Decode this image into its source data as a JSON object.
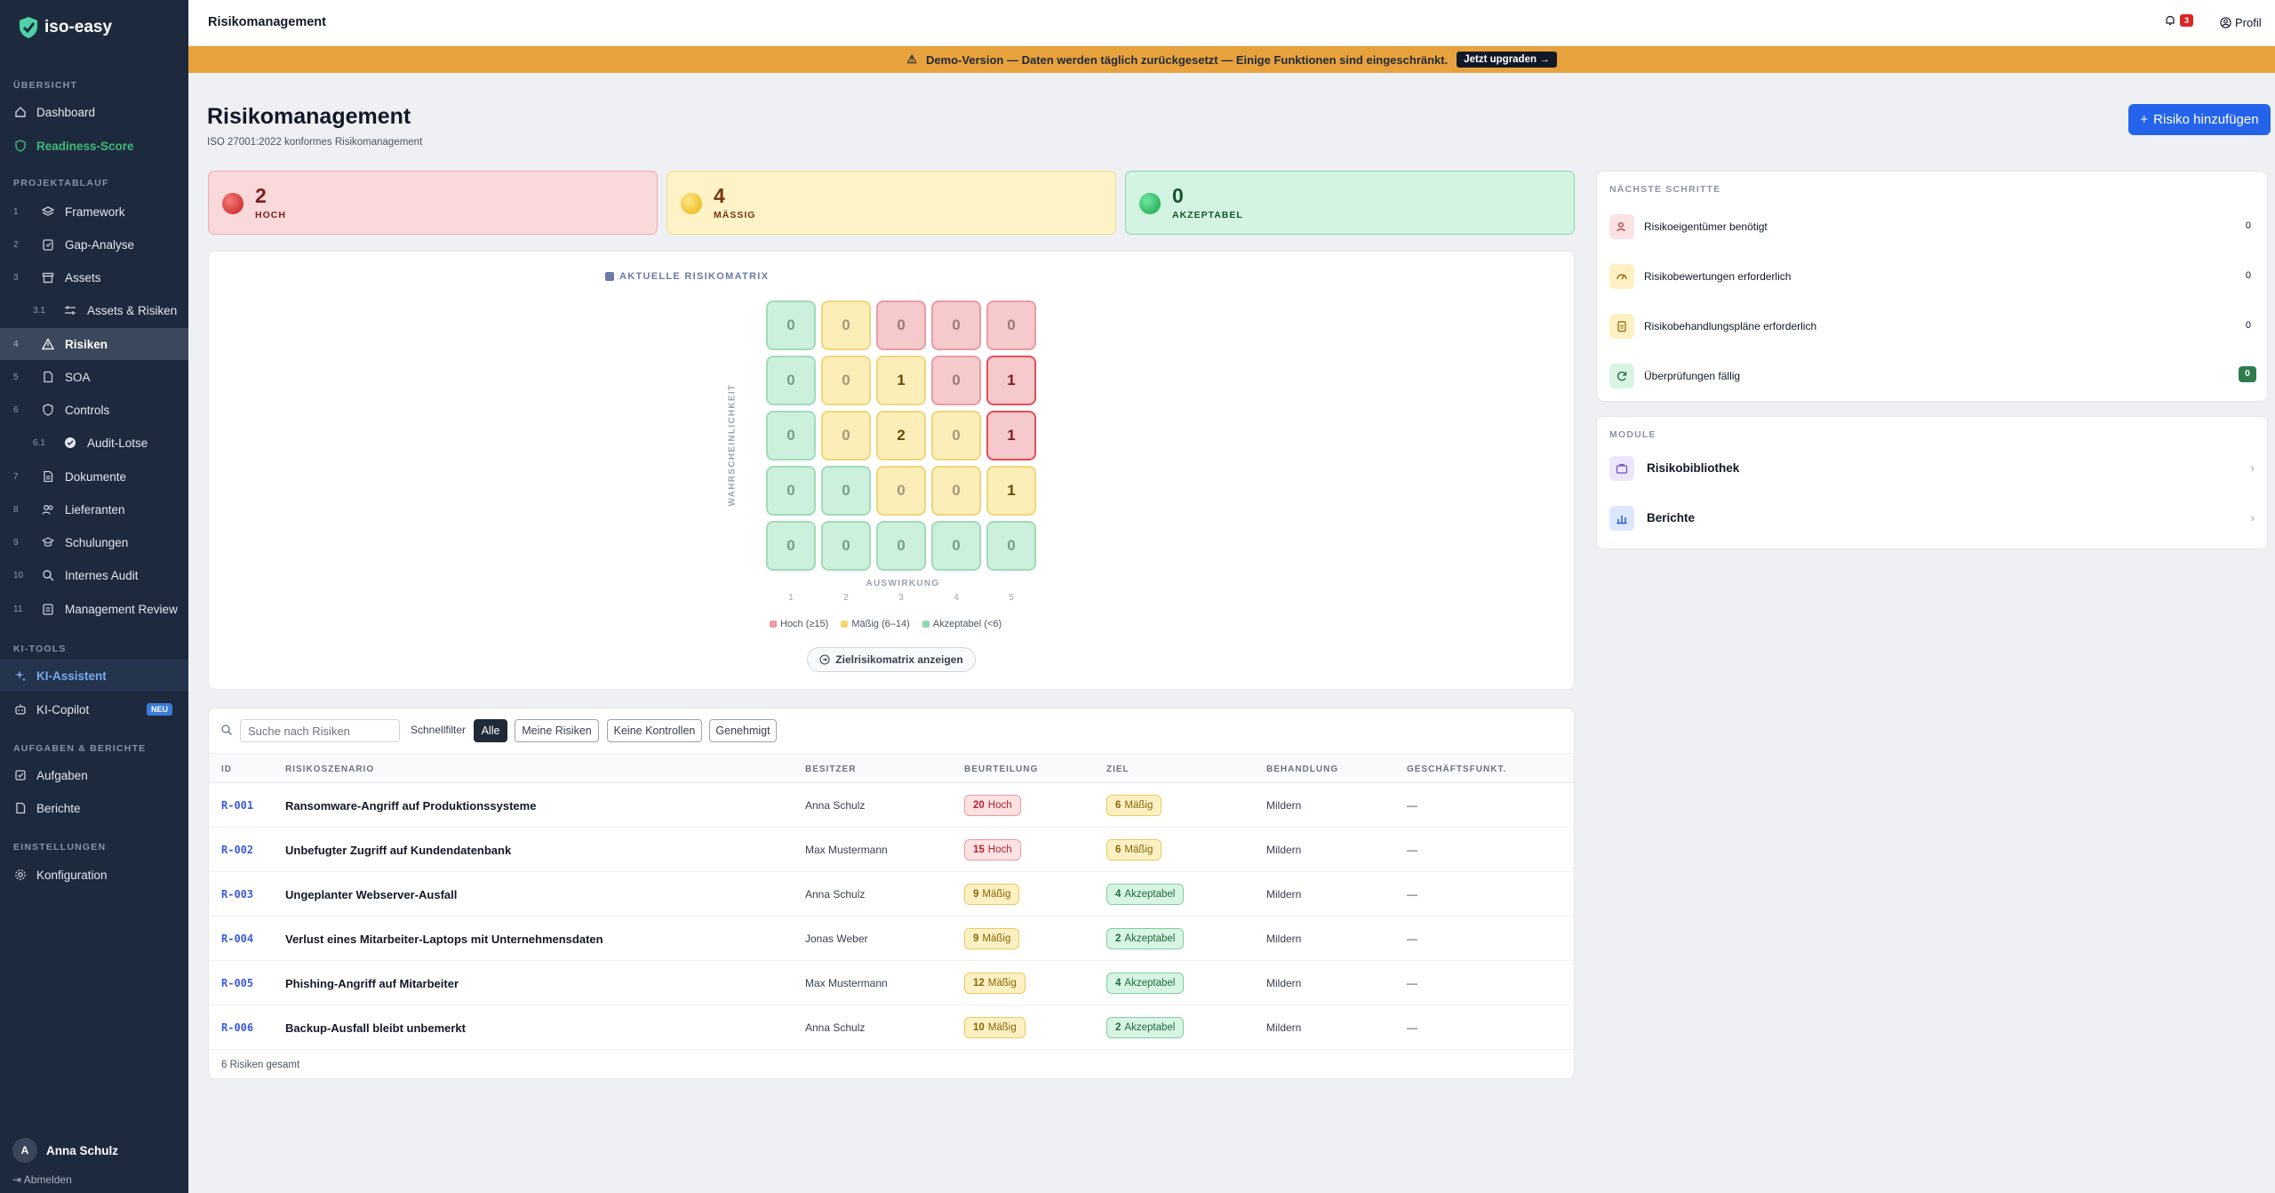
{
  "sidebar": {
    "brand": "iso-easy",
    "sections": {
      "overview": "ÜBERSICHT",
      "project": "PROJEKTABLAUF",
      "ai": "KI-TOOLS",
      "tasks": "AUFGABEN & BERICHTE",
      "settings": "EINSTELLUNGEN"
    },
    "overview_items": [
      {
        "label": "Dashboard",
        "icon": "home-icon"
      },
      {
        "label": "Readiness-Score",
        "icon": "shield-check-icon"
      }
    ],
    "project_items": [
      {
        "num": "1",
        "label": "Framework",
        "icon": "layers-icon"
      },
      {
        "num": "2",
        "label": "Gap-Analyse",
        "icon": "clipboard-icon"
      },
      {
        "num": "3",
        "label": "Assets",
        "icon": "archive-icon"
      },
      {
        "num": "3.1",
        "label": "Assets & Risiken",
        "icon": "sliders-icon"
      },
      {
        "num": "4",
        "label": "Risiken",
        "icon": "warning-icon"
      },
      {
        "num": "5",
        "label": "SOA",
        "icon": "document-icon"
      },
      {
        "num": "6",
        "label": "Controls",
        "icon": "shield-icon"
      },
      {
        "num": "6.1",
        "label": "Audit-Lotse",
        "icon": "badge-check-icon"
      },
      {
        "num": "7",
        "label": "Dokumente",
        "icon": "file-icon"
      },
      {
        "num": "8",
        "label": "Lieferanten",
        "icon": "users-icon"
      },
      {
        "num": "9",
        "label": "Schulungen",
        "icon": "graduation-cap-icon"
      },
      {
        "num": "10",
        "label": "Internes Audit",
        "icon": "search-icon"
      },
      {
        "num": "11",
        "label": "Management Review",
        "icon": "clipboard-check-icon"
      }
    ],
    "ai_items": [
      {
        "label": "KI-Assistent",
        "icon": "sparkles-icon"
      },
      {
        "label": "KI-Copilot",
        "icon": "bot-icon",
        "badge": "NEU"
      }
    ],
    "task_items": [
      {
        "label": "Aufgaben",
        "icon": "check-square-icon"
      },
      {
        "label": "Berichte",
        "icon": "report-icon"
      }
    ],
    "settings_items": [
      {
        "label": "Konfiguration",
        "icon": "gear-icon"
      }
    ],
    "user": {
      "initial": "A",
      "name": "Anna Schulz",
      "logout": "Abmelden"
    }
  },
  "topbar": {
    "title": "Risikomanagement",
    "notifications": "3",
    "profile": "Profil"
  },
  "demo_banner": {
    "text": "Demo-Version — Daten werden täglich zurückgesetzt — Einige Funktionen sind eingeschränkt.",
    "button": "Jetzt upgraden →"
  },
  "page": {
    "title": "Risikomanagement",
    "subtitle": "ISO 27001:2022 konformes Risikomanagement",
    "add_button": "Risiko hinzufügen"
  },
  "stats": [
    {
      "value": "2",
      "label": "HOCH",
      "color": "#dc2626"
    },
    {
      "value": "4",
      "label": "MÄSSIG",
      "color": "#eab308"
    },
    {
      "value": "0",
      "label": "AKZEPTABEL",
      "color": "#16a34a"
    }
  ],
  "matrix": {
    "title": "AKTUELLE RISIKOMATRIX",
    "y_label": "WAHRSCHEINLICHKEIT",
    "x_label": "AUSWIRKUNG",
    "x_ticks": [
      "1",
      "2",
      "3",
      "4",
      "5"
    ],
    "rows": [
      [
        "0",
        "0",
        "0",
        "0",
        "0"
      ],
      [
        "0",
        "0",
        "1",
        "0",
        "1"
      ],
      [
        "0",
        "0",
        "2",
        "0",
        "1"
      ],
      [
        "0",
        "0",
        "0",
        "0",
        "1"
      ],
      [
        "0",
        "0",
        "0",
        "0",
        "0"
      ]
    ],
    "levels": [
      [
        "g",
        "y",
        "r",
        "r",
        "r"
      ],
      [
        "g",
        "y",
        "y",
        "r",
        "r"
      ],
      [
        "g",
        "y",
        "y",
        "y",
        "r"
      ],
      [
        "g",
        "g",
        "y",
        "y",
        "y"
      ],
      [
        "g",
        "g",
        "g",
        "g",
        "g"
      ]
    ],
    "legend": [
      {
        "label": "Hoch (≥15)",
        "color": "#f19aa0"
      },
      {
        "label": "Mäßig (6–14)",
        "color": "#f5d76e"
      },
      {
        "label": "Akzeptabel (<6)",
        "color": "#8fd9ad"
      }
    ],
    "target_button": "Zielrisikomatrix anzeigen"
  },
  "next_steps": {
    "title": "NÄCHSTE SCHRITTE",
    "items": [
      {
        "label": "Risikoeigentümer benötigt",
        "count": "0",
        "icon": "user-icon"
      },
      {
        "label": "Risikobewertungen erforderlich",
        "count": "0",
        "icon": "gauge-icon"
      },
      {
        "label": "Risikobehandlungspläne erforderlich",
        "count": "0",
        "icon": "clipboard-icon"
      },
      {
        "label": "Überprüfungen fällig",
        "count": "0",
        "icon": "refresh-icon"
      }
    ]
  },
  "modules": {
    "title": "MODULE",
    "items": [
      {
        "label": "Risikobibliothek",
        "icon": "briefcase-icon"
      },
      {
        "label": "Berichte",
        "icon": "bar-chart-icon"
      }
    ]
  },
  "table": {
    "search_placeholder": "Suche nach Risiken",
    "quickfilter_label": "Schnellfilter",
    "filters": [
      "Alle",
      "Meine Risiken",
      "Keine Kontrollen",
      "Genehmigt"
    ],
    "columns": [
      "ID",
      "RISIKOSZENARIO",
      "BESITZER",
      "BEURTEILUNG",
      "ZIEL",
      "BEHANDLUNG",
      "GESCHÄFTSFUNKT."
    ],
    "rows": [
      {
        "id": "R-001",
        "scenario": "Ransomware-Angriff auf Produktionssysteme",
        "owner": "Anna Schulz",
        "score": "20",
        "level": "Hoch",
        "target_score": "6",
        "target_level": "Mäßig",
        "treatment": "Mildern",
        "function": "—"
      },
      {
        "id": "R-002",
        "scenario": "Unbefugter Zugriff auf Kundendatenbank",
        "owner": "Max Mustermann",
        "score": "15",
        "level": "Hoch",
        "target_score": "6",
        "target_level": "Mäßig",
        "treatment": "Mildern",
        "function": "—"
      },
      {
        "id": "R-003",
        "scenario": "Ungeplanter Webserver-Ausfall",
        "owner": "Anna Schulz",
        "score": "9",
        "level": "Mäßig",
        "target_score": "4",
        "target_level": "Akzeptabel",
        "treatment": "Mildern",
        "function": "—"
      },
      {
        "id": "R-004",
        "scenario": "Verlust eines Mitarbeiter-Laptops mit Unternehmensdaten",
        "owner": "Jonas Weber",
        "score": "9",
        "level": "Mäßig",
        "target_score": "2",
        "target_level": "Akzeptabel",
        "treatment": "Mildern",
        "function": "—"
      },
      {
        "id": "R-005",
        "scenario": "Phishing-Angriff auf Mitarbeiter",
        "owner": "Max Mustermann",
        "score": "12",
        "level": "Mäßig",
        "target_score": "4",
        "target_level": "Akzeptabel",
        "treatment": "Mildern",
        "function": "—"
      },
      {
        "id": "R-006",
        "scenario": "Backup-Ausfall bleibt unbemerkt",
        "owner": "Anna Schulz",
        "score": "10",
        "level": "Mäßig",
        "target_score": "2",
        "target_level": "Akzeptabel",
        "treatment": "Mildern",
        "function": "—"
      }
    ],
    "footer": "6 Risiken gesamt"
  }
}
